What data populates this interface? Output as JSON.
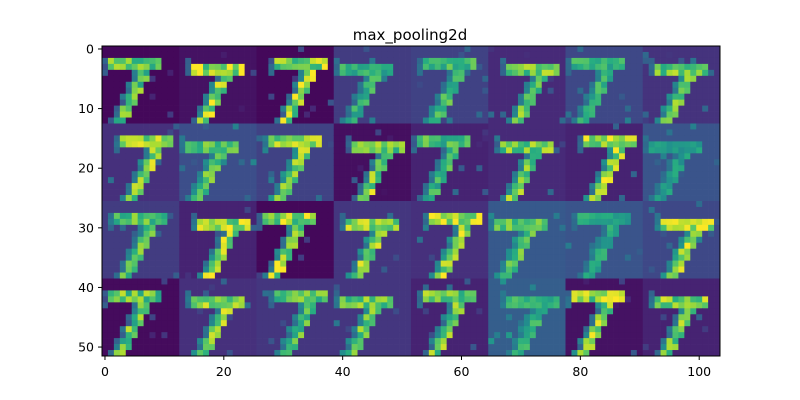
{
  "chart_data": {
    "type": "heatmap",
    "title": "max_pooling2d",
    "xlabel": "",
    "ylabel": "",
    "colormap": "viridis",
    "grid": false,
    "grid_layout": {
      "rows": 4,
      "cols": 8,
      "tile_width": 13,
      "tile_height": 13
    },
    "xlim": [
      -0.5,
      103.5
    ],
    "ylim": [
      51.5,
      -0.5
    ],
    "xticks": [
      0,
      20,
      40,
      60,
      80,
      100
    ],
    "yticks": [
      0,
      10,
      20,
      30,
      40,
      50
    ],
    "xtick_labels": [
      "0",
      "20",
      "40",
      "60",
      "80",
      "100"
    ],
    "ytick_labels": [
      "0",
      "10",
      "20",
      "30",
      "40",
      "50"
    ],
    "digit": "7",
    "tile_background_levels": [
      [
        0.02,
        0.05,
        0.02,
        0.18,
        0.2,
        0.12,
        0.22,
        0.15
      ],
      [
        0.14,
        0.24,
        0.2,
        0.04,
        0.1,
        0.12,
        0.1,
        0.26
      ],
      [
        0.18,
        0.1,
        0.02,
        0.16,
        0.14,
        0.28,
        0.26,
        0.22
      ],
      [
        0.03,
        0.14,
        0.16,
        0.16,
        0.1,
        0.3,
        0.05,
        0.1
      ]
    ],
    "tile_stroke_levels": [
      [
        0.85,
        0.95,
        0.95,
        0.7,
        0.75,
        0.85,
        0.7,
        0.85
      ],
      [
        0.9,
        0.8,
        0.9,
        0.9,
        0.75,
        0.85,
        0.95,
        0.6
      ],
      [
        0.8,
        0.95,
        0.95,
        0.9,
        0.95,
        0.8,
        0.65,
        0.95
      ],
      [
        0.85,
        0.9,
        0.8,
        0.85,
        0.85,
        0.7,
        0.95,
        0.9
      ]
    ]
  }
}
